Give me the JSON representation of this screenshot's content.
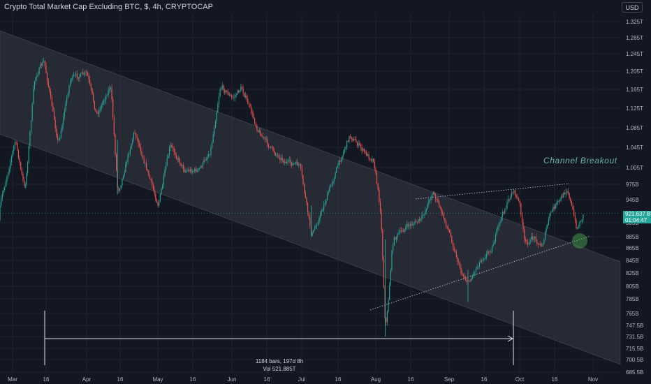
{
  "header": {
    "title": "Crypto Total Market Cap Excluding BTC, $, 4h, CRYPTOCAP",
    "currency": "USD"
  },
  "price_tag": {
    "value": "921.637 B",
    "countdown": "01:04:47"
  },
  "annotation": {
    "text": "Channel Breakout"
  },
  "measure": {
    "bars_label": "1184 bars, 197d 8h",
    "vol_label": "Vol 521.885T"
  },
  "colors": {
    "background": "#131722",
    "up": "#26a69a",
    "down": "#ef5350",
    "channel_fill": "#363a45",
    "grid": "#1f2330",
    "annotation": "#6ab0a4"
  },
  "chart_data": {
    "type": "candlestick",
    "symbol": "Crypto Total Market Cap Excluding BTC",
    "timeframe": "4h",
    "x_ticks": [
      "Mar",
      "16",
      "Apr",
      "16",
      "May",
      "16",
      "Jun",
      "16",
      "Jul",
      "16",
      "Aug",
      "16",
      "Sep",
      "16",
      "Oct",
      "16",
      "Nov"
    ],
    "y_ticks": [
      "1.325T",
      "1.285T",
      "1.245T",
      "1.205T",
      "1.165T",
      "1.125T",
      "1.085T",
      "1.045T",
      "1.005T",
      "975B",
      "945B",
      "905B",
      "885B",
      "865B",
      "845B",
      "825B",
      "805B",
      "785B",
      "765B",
      "747.5B",
      "731.5B",
      "715.5B",
      "700.5B",
      "685.5B"
    ],
    "y_unit": "USD",
    "scale": "log",
    "last_price": "921.637B",
    "path_keypoints": [
      {
        "date": "2024-02-23",
        "value": 910
      },
      {
        "date": "2024-03-02",
        "value": 1060
      },
      {
        "date": "2024-03-06",
        "value": 960
      },
      {
        "date": "2024-03-10",
        "value": 1190
      },
      {
        "date": "2024-03-14",
        "value": 1230
      },
      {
        "date": "2024-03-20",
        "value": 1050
      },
      {
        "date": "2024-03-25",
        "value": 1190
      },
      {
        "date": "2024-04-01",
        "value": 1200
      },
      {
        "date": "2024-04-05",
        "value": 1110
      },
      {
        "date": "2024-04-11",
        "value": 1175
      },
      {
        "date": "2024-04-14",
        "value": 955
      },
      {
        "date": "2024-04-21",
        "value": 1080
      },
      {
        "date": "2024-04-27",
        "value": 990
      },
      {
        "date": "2024-05-01",
        "value": 935
      },
      {
        "date": "2024-05-06",
        "value": 1050
      },
      {
        "date": "2024-05-12",
        "value": 1000
      },
      {
        "date": "2024-05-18",
        "value": 1000
      },
      {
        "date": "2024-05-23",
        "value": 1040
      },
      {
        "date": "2024-05-27",
        "value": 1175
      },
      {
        "date": "2024-06-01",
        "value": 1145
      },
      {
        "date": "2024-06-05",
        "value": 1170
      },
      {
        "date": "2024-06-12",
        "value": 1080
      },
      {
        "date": "2024-06-18",
        "value": 1040
      },
      {
        "date": "2024-06-24",
        "value": 1015
      },
      {
        "date": "2024-06-30",
        "value": 1010
      },
      {
        "date": "2024-07-05",
        "value": 885
      },
      {
        "date": "2024-07-10",
        "value": 935
      },
      {
        "date": "2024-07-16",
        "value": 1010
      },
      {
        "date": "2024-07-21",
        "value": 1070
      },
      {
        "date": "2024-07-28",
        "value": 1030
      },
      {
        "date": "2024-07-31",
        "value": 1020
      },
      {
        "date": "2024-08-03",
        "value": 920
      },
      {
        "date": "2024-08-05",
        "value": 731.5
      },
      {
        "date": "2024-08-08",
        "value": 880
      },
      {
        "date": "2024-08-14",
        "value": 900
      },
      {
        "date": "2024-08-20",
        "value": 910
      },
      {
        "date": "2024-08-25",
        "value": 962
      },
      {
        "date": "2024-09-01",
        "value": 890
      },
      {
        "date": "2024-09-06",
        "value": 825
      },
      {
        "date": "2024-09-09",
        "value": 810
      },
      {
        "date": "2024-09-14",
        "value": 845
      },
      {
        "date": "2024-09-19",
        "value": 865
      },
      {
        "date": "2024-09-23",
        "value": 915
      },
      {
        "date": "2024-09-28",
        "value": 965
      },
      {
        "date": "2024-10-01",
        "value": 935
      },
      {
        "date": "2024-10-03",
        "value": 870
      },
      {
        "date": "2024-10-07",
        "value": 885
      },
      {
        "date": "2024-10-10",
        "value": 865
      },
      {
        "date": "2024-10-14",
        "value": 925
      },
      {
        "date": "2024-10-18",
        "value": 945
      },
      {
        "date": "2024-10-21",
        "value": 968
      },
      {
        "date": "2024-10-25",
        "value": 895
      },
      {
        "date": "2024-10-28",
        "value": 921.637
      }
    ]
  }
}
